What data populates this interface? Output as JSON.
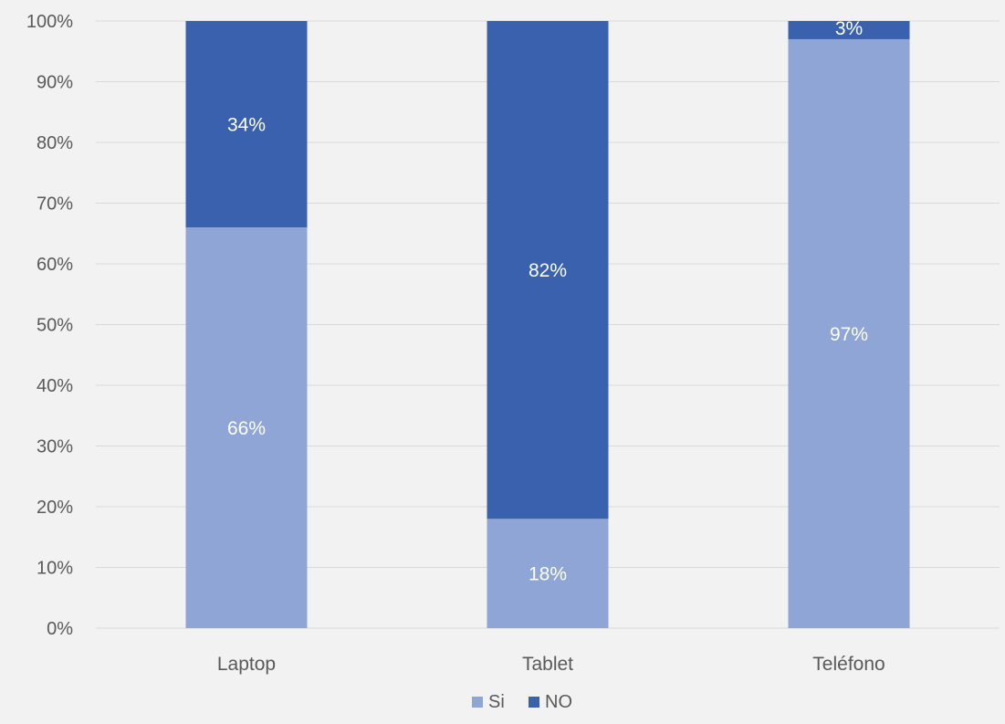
{
  "chart_data": {
    "type": "bar",
    "stacked": true,
    "percent_stacked": true,
    "categories": [
      "Laptop",
      "Tablet",
      "Teléfono"
    ],
    "series": [
      {
        "name": "Si",
        "values": [
          66,
          18,
          97
        ],
        "labels": [
          "66%",
          "18%",
          "97%"
        ],
        "color": "#8fa5d6"
      },
      {
        "name": "NO",
        "values": [
          34,
          82,
          3
        ],
        "labels": [
          "34%",
          "82%",
          "3%"
        ],
        "color": "#3a61ae"
      }
    ],
    "title": "",
    "xlabel": "",
    "ylabel": "",
    "ylim": [
      0,
      100
    ],
    "yticks": [
      "0%",
      "10%",
      "20%",
      "30%",
      "40%",
      "50%",
      "60%",
      "70%",
      "80%",
      "90%",
      "100%"
    ],
    "grid": true,
    "legend": "bottom",
    "colors": {
      "background": "#f2f2f2",
      "gridline": "#d9d9d9",
      "axis_text": "#595959",
      "label_text": "#ffffff"
    }
  }
}
